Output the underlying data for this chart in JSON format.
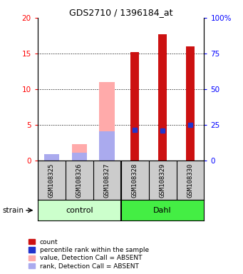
{
  "title": "GDS2710 / 1396184_at",
  "samples": [
    "GSM108325",
    "GSM108326",
    "GSM108327",
    "GSM108328",
    "GSM108329",
    "GSM108330"
  ],
  "ylim_left": [
    0,
    20
  ],
  "ylim_right": [
    0,
    100
  ],
  "yticks_left": [
    0,
    5,
    10,
    15,
    20
  ],
  "yticks_right": [
    0,
    25,
    50,
    75,
    100
  ],
  "yticklabels_right": [
    "0",
    "25",
    "50",
    "75",
    "100%"
  ],
  "red_bars": [
    0,
    0,
    0,
    15.2,
    17.7,
    16.0
  ],
  "blue_dots": [
    0,
    0,
    0,
    4.3,
    4.2,
    5.0
  ],
  "pink_bars": [
    0.9,
    2.3,
    11.0,
    0,
    0,
    0
  ],
  "lavender_bars": [
    0.9,
    1.1,
    4.1,
    0,
    0,
    0
  ],
  "red_color": "#cc1111",
  "blue_color": "#2233cc",
  "pink_color": "#ffaaaa",
  "lavender_color": "#aaaaee",
  "control_color": "#ccffcc",
  "dahl_color": "#44ee44",
  "sample_bg_color": "#cccccc",
  "legend_items": [
    {
      "color": "#cc1111",
      "label": "count"
    },
    {
      "color": "#2233cc",
      "label": "percentile rank within the sample"
    },
    {
      "color": "#ffaaaa",
      "label": "value, Detection Call = ABSENT"
    },
    {
      "color": "#aaaaee",
      "label": "rank, Detection Call = ABSENT"
    }
  ]
}
